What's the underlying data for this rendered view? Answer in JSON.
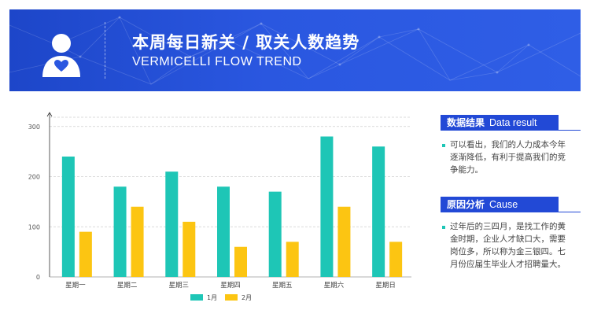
{
  "header": {
    "title": "本周每日新关 / 取关人数趋势",
    "subtitle": "VERMICELLI FLOW TREND"
  },
  "colors": {
    "banner": "#2a57e0",
    "series1": "#1ec6b6",
    "series2": "#fcc512",
    "tag": "#2249d6"
  },
  "chart_data": {
    "type": "bar",
    "categories": [
      "星期一",
      "星期二",
      "星期三",
      "星期四",
      "星期五",
      "星期六",
      "星期日"
    ],
    "series": [
      {
        "name": "1月",
        "values": [
          240,
          180,
          210,
          180,
          170,
          280,
          260
        ]
      },
      {
        "name": "2月",
        "values": [
          90,
          140,
          110,
          60,
          70,
          140,
          70
        ]
      }
    ],
    "yticks": [
      0,
      100,
      200,
      300
    ],
    "ylim": [
      0,
      320
    ],
    "grid": true,
    "legend": "bottom"
  },
  "panel": {
    "result": {
      "label_cn": "数据结果",
      "label_en": "Data result",
      "text": "可以看出，我们的人力成本今年逐渐降低，有利于提高我们的竞争能力。"
    },
    "cause": {
      "label_cn": "原因分析",
      "label_en": "Cause",
      "text": "过年后的三四月，是找工作的黄金时期，企业人才缺口大，需要岗位多，所以称为金三银四。七月份应届生毕业人才招聘量大。"
    }
  }
}
